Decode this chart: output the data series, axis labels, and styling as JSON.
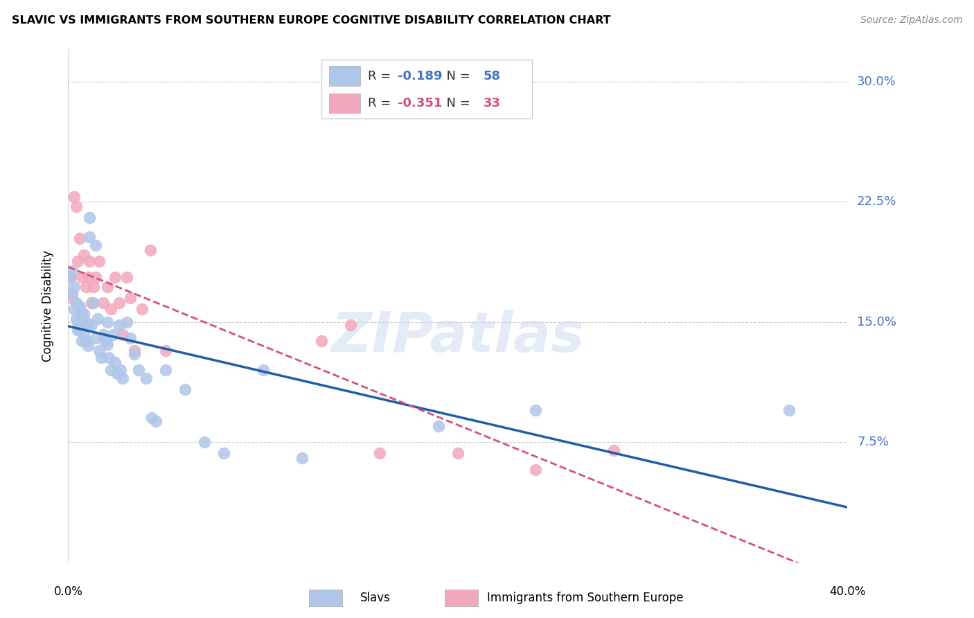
{
  "title": "SLAVIC VS IMMIGRANTS FROM SOUTHERN EUROPE COGNITIVE DISABILITY CORRELATION CHART",
  "source": "Source: ZipAtlas.com",
  "ylabel": "Cognitive Disability",
  "ytick_labels": [
    "7.5%",
    "15.0%",
    "22.5%",
    "30.0%"
  ],
  "ytick_values": [
    0.075,
    0.15,
    0.225,
    0.3
  ],
  "xlim": [
    0.0,
    0.4
  ],
  "ylim": [
    0.0,
    0.32
  ],
  "R_slavic": -0.189,
  "N_slavic": 58,
  "R_southern": -0.351,
  "N_southern": 33,
  "legend_label_1": "Slavs",
  "legend_label_2": "Immigrants from Southern Europe",
  "watermark": "ZIPatlas",
  "blue_color": "#aec6e8",
  "blue_line_color": "#1f5fa6",
  "pink_color": "#f2a8bc",
  "pink_line_color": "#d94f7a",
  "slavic_x": [
    0.001,
    0.002,
    0.002,
    0.003,
    0.003,
    0.004,
    0.004,
    0.005,
    0.005,
    0.005,
    0.006,
    0.006,
    0.007,
    0.007,
    0.007,
    0.008,
    0.008,
    0.009,
    0.009,
    0.01,
    0.01,
    0.011,
    0.011,
    0.012,
    0.013,
    0.014,
    0.014,
    0.015,
    0.016,
    0.017,
    0.018,
    0.019,
    0.02,
    0.02,
    0.021,
    0.022,
    0.023,
    0.024,
    0.025,
    0.026,
    0.027,
    0.028,
    0.03,
    0.032,
    0.034,
    0.036,
    0.04,
    0.043,
    0.045,
    0.05,
    0.06,
    0.07,
    0.08,
    0.1,
    0.12,
    0.19,
    0.24,
    0.37
  ],
  "slavic_y": [
    0.178,
    0.182,
    0.168,
    0.172,
    0.158,
    0.162,
    0.152,
    0.16,
    0.15,
    0.145,
    0.16,
    0.145,
    0.155,
    0.148,
    0.138,
    0.155,
    0.142,
    0.15,
    0.138,
    0.148,
    0.135,
    0.203,
    0.215,
    0.148,
    0.162,
    0.198,
    0.14,
    0.152,
    0.132,
    0.128,
    0.142,
    0.138,
    0.136,
    0.15,
    0.128,
    0.12,
    0.142,
    0.125,
    0.118,
    0.148,
    0.12,
    0.115,
    0.15,
    0.14,
    0.13,
    0.12,
    0.115,
    0.09,
    0.088,
    0.12,
    0.108,
    0.075,
    0.068,
    0.12,
    0.065,
    0.085,
    0.095,
    0.095
  ],
  "southern_x": [
    0.001,
    0.002,
    0.003,
    0.004,
    0.005,
    0.006,
    0.007,
    0.008,
    0.009,
    0.01,
    0.011,
    0.012,
    0.013,
    0.014,
    0.016,
    0.018,
    0.02,
    0.022,
    0.024,
    0.026,
    0.028,
    0.03,
    0.032,
    0.034,
    0.038,
    0.042,
    0.05,
    0.13,
    0.145,
    0.16,
    0.2,
    0.24,
    0.28
  ],
  "southern_y": [
    0.178,
    0.165,
    0.228,
    0.222,
    0.188,
    0.202,
    0.178,
    0.192,
    0.172,
    0.178,
    0.188,
    0.162,
    0.172,
    0.178,
    0.188,
    0.162,
    0.172,
    0.158,
    0.178,
    0.162,
    0.142,
    0.178,
    0.165,
    0.132,
    0.158,
    0.195,
    0.132,
    0.138,
    0.148,
    0.068,
    0.068,
    0.058,
    0.07
  ]
}
